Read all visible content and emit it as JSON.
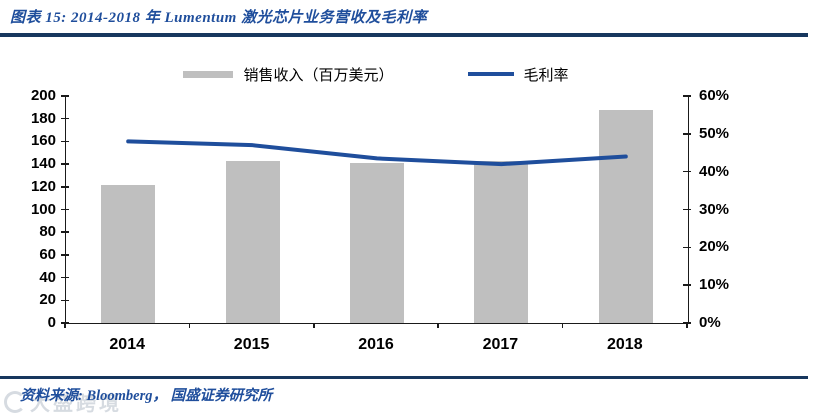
{
  "figure": {
    "title": "图表 15:  2014-2018 年 Lumentum 激光芯片业务营收及毛利率",
    "source": "资料来源: Bloomberg， 国盛证券研究所",
    "watermark": "大盛跨境"
  },
  "colors": {
    "rule_navy": "#17375E",
    "title_blue": "#1F4E9C",
    "bar_gray": "#BFBFBF",
    "line_blue": "#1F4E9C",
    "axis_black": "#1A1A1A"
  },
  "chart_data": {
    "type": "bar+line combo",
    "categories": [
      "2014",
      "2015",
      "2016",
      "2017",
      "2018"
    ],
    "series": [
      {
        "name": "销售收入（百万美元）",
        "type": "bar",
        "axis": "left",
        "values": [
          122,
          143,
          141,
          143,
          188
        ]
      },
      {
        "name": "毛利率",
        "type": "line",
        "axis": "right",
        "values_percent": [
          48,
          47,
          43.5,
          42,
          44
        ]
      }
    ],
    "left_axis": {
      "min": 0,
      "max": 200,
      "step": 20
    },
    "right_axis": {
      "min": 0,
      "max": 60,
      "step": 10,
      "format": "percent"
    },
    "legend_position": "top-center",
    "grid": false
  }
}
